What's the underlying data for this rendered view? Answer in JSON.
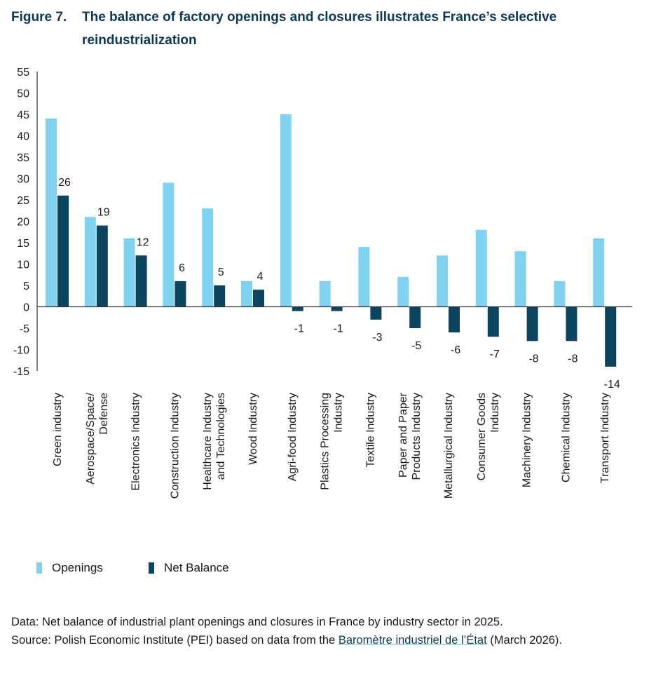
{
  "figure": {
    "number": "Figure 7.",
    "title": "The balance of factory openings and closures illustrates France’s selective reindustrialization"
  },
  "colors": {
    "openings": "#7fd3f0",
    "net_balance": "#0b4560",
    "title": "#0b3954"
  },
  "legend": {
    "openings": "Openings",
    "net_balance": "Net Balance"
  },
  "notes": {
    "data": "Data: Net balance of industrial plant openings and closures in France by industry sector in 2025.",
    "source_prefix": "Source: Polish Economic Institute (PEI) based on data from the ",
    "source_link": "Baromètre industriel de l’État",
    "source_suffix": " (March 2026)."
  },
  "chart_data": {
    "type": "bar",
    "categories": [
      [
        "Green industry"
      ],
      [
        "Aerospace/Space/",
        "Defense"
      ],
      [
        "Electronics Industry"
      ],
      [
        "Construction Industry"
      ],
      [
        "Healthcare Industry",
        "and Technologies"
      ],
      [
        "Wood Industry"
      ],
      [
        "Agri-food Industry"
      ],
      [
        "Plastics Processing",
        "Industry"
      ],
      [
        "Textile Industry"
      ],
      [
        "Paper and Paper",
        "Products Industry"
      ],
      [
        "Metallurgical Industry"
      ],
      [
        "Consumer Goods",
        "Industry"
      ],
      [
        "Machinery Industry"
      ],
      [
        "Chemical Industry"
      ],
      [
        "Transport Industry"
      ]
    ],
    "series": [
      {
        "name": "Openings",
        "values": [
          44,
          21,
          16,
          29,
          23,
          6,
          45,
          6,
          14,
          7,
          12,
          18,
          13,
          6,
          16
        ]
      },
      {
        "name": "Net Balance",
        "values": [
          26,
          19,
          12,
          6,
          5,
          4,
          -1,
          -1,
          -3,
          -5,
          -6,
          -7,
          -8,
          -8,
          -14
        ]
      }
    ],
    "data_labels": {
      "Net Balance": [
        "26",
        "19",
        "12",
        "6",
        "5",
        "4",
        "-1",
        "-1",
        "-3",
        "-5",
        "-6",
        "-7",
        "-8",
        "-8",
        "-14"
      ]
    },
    "ylim": [
      -15,
      55
    ],
    "yticks": [
      55,
      50,
      45,
      40,
      35,
      30,
      25,
      20,
      15,
      10,
      5,
      0,
      -5,
      -10,
      -15
    ],
    "grid": false,
    "legend_position": "bottom-left"
  }
}
